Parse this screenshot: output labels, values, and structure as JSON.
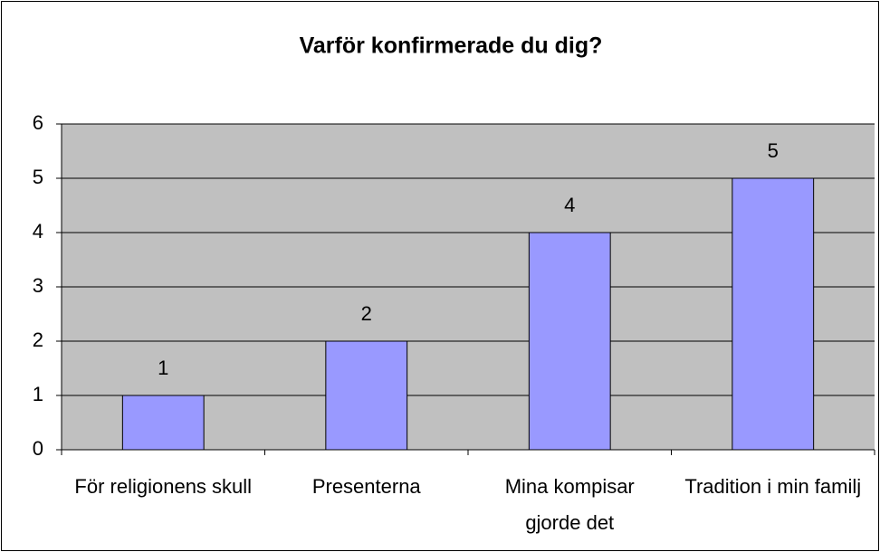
{
  "chart_data": {
    "type": "bar",
    "title": "Varför konfirmerade du dig?",
    "categories": [
      "För religionens skull",
      "Presenterna",
      "Mina kompisar gjorde det",
      "Tradition i min familj"
    ],
    "values": [
      1,
      2,
      4,
      5
    ],
    "color": "#9999ff",
    "plot_background": "#c0c0c0",
    "ylim": [
      0,
      6
    ],
    "yticks": [
      0,
      1,
      2,
      3,
      4,
      5,
      6
    ],
    "grid": true,
    "data_labels": true
  }
}
